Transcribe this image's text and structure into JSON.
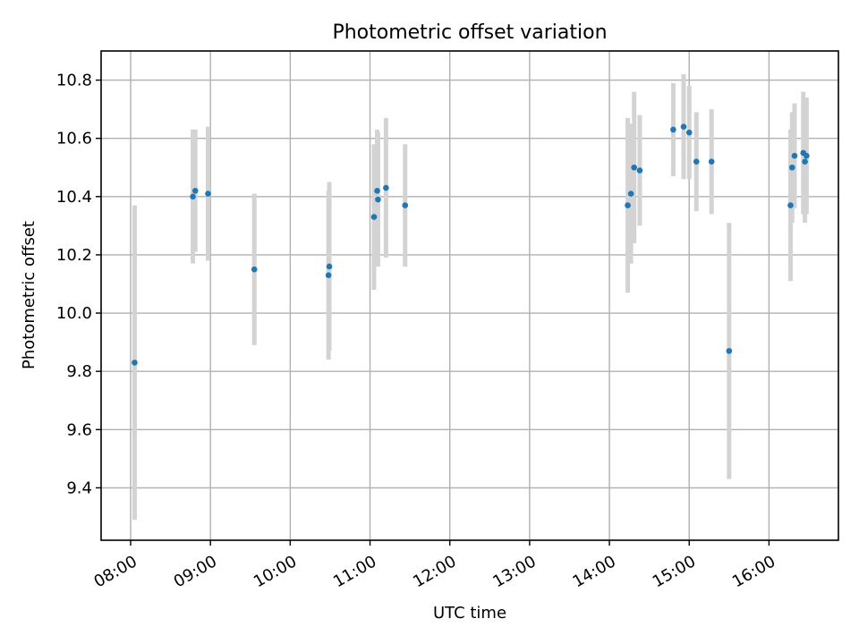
{
  "chart_data": {
    "type": "scatter",
    "title": "Photometric offset variation",
    "xlabel": "UTC time",
    "ylabel": "Photometric offset",
    "grid": true,
    "xlim": [
      7.63,
      16.87
    ],
    "ylim": [
      9.22,
      10.9
    ],
    "x_ticks": [
      {
        "value": 8,
        "label": "08:00"
      },
      {
        "value": 9,
        "label": "09:00"
      },
      {
        "value": 10,
        "label": "10:00"
      },
      {
        "value": 11,
        "label": "11:00"
      },
      {
        "value": 12,
        "label": "12:00"
      },
      {
        "value": 13,
        "label": "13:00"
      },
      {
        "value": 14,
        "label": "14:00"
      },
      {
        "value": 15,
        "label": "15:00"
      },
      {
        "value": 16,
        "label": "16:00"
      }
    ],
    "y_ticks": [
      {
        "value": 9.4,
        "label": "9.4"
      },
      {
        "value": 9.6,
        "label": "9.6"
      },
      {
        "value": 9.8,
        "label": "9.8"
      },
      {
        "value": 10.0,
        "label": "10.0"
      },
      {
        "value": 10.2,
        "label": "10.2"
      },
      {
        "value": 10.4,
        "label": "10.4"
      },
      {
        "value": 10.6,
        "label": "10.6"
      },
      {
        "value": 10.8,
        "label": "10.8"
      }
    ],
    "colors": {
      "point": "#1f77b4",
      "errorbar": "#d3d3d3",
      "grid": "#b0b0b0"
    },
    "points": [
      {
        "x": 8.05,
        "y": 9.83,
        "err": 0.54
      },
      {
        "x": 8.78,
        "y": 10.4,
        "err": 0.23
      },
      {
        "x": 8.81,
        "y": 10.42,
        "err": 0.21
      },
      {
        "x": 8.97,
        "y": 10.41,
        "err": 0.23
      },
      {
        "x": 9.55,
        "y": 10.15,
        "err": 0.26
      },
      {
        "x": 10.48,
        "y": 10.13,
        "err": 0.29
      },
      {
        "x": 10.49,
        "y": 10.16,
        "err": 0.29
      },
      {
        "x": 11.05,
        "y": 10.33,
        "err": 0.25
      },
      {
        "x": 11.09,
        "y": 10.42,
        "err": 0.21
      },
      {
        "x": 11.1,
        "y": 10.39,
        "err": 0.23
      },
      {
        "x": 11.2,
        "y": 10.43,
        "err": 0.24
      },
      {
        "x": 11.44,
        "y": 10.37,
        "err": 0.21
      },
      {
        "x": 14.23,
        "y": 10.37,
        "err": 0.3
      },
      {
        "x": 14.27,
        "y": 10.41,
        "err": 0.24
      },
      {
        "x": 14.31,
        "y": 10.5,
        "err": 0.26
      },
      {
        "x": 14.38,
        "y": 10.49,
        "err": 0.19
      },
      {
        "x": 14.8,
        "y": 10.63,
        "err": 0.16
      },
      {
        "x": 14.93,
        "y": 10.64,
        "err": 0.18
      },
      {
        "x": 15.0,
        "y": 10.62,
        "err": 0.16
      },
      {
        "x": 15.09,
        "y": 10.52,
        "err": 0.17
      },
      {
        "x": 15.28,
        "y": 10.52,
        "err": 0.18
      },
      {
        "x": 15.5,
        "y": 9.87,
        "err": 0.44
      },
      {
        "x": 16.27,
        "y": 10.37,
        "err": 0.26
      },
      {
        "x": 16.29,
        "y": 10.5,
        "err": 0.19
      },
      {
        "x": 16.32,
        "y": 10.54,
        "err": 0.18
      },
      {
        "x": 16.43,
        "y": 10.55,
        "err": 0.21
      },
      {
        "x": 16.45,
        "y": 10.52,
        "err": 0.21
      },
      {
        "x": 16.47,
        "y": 10.54,
        "err": 0.2
      }
    ]
  }
}
